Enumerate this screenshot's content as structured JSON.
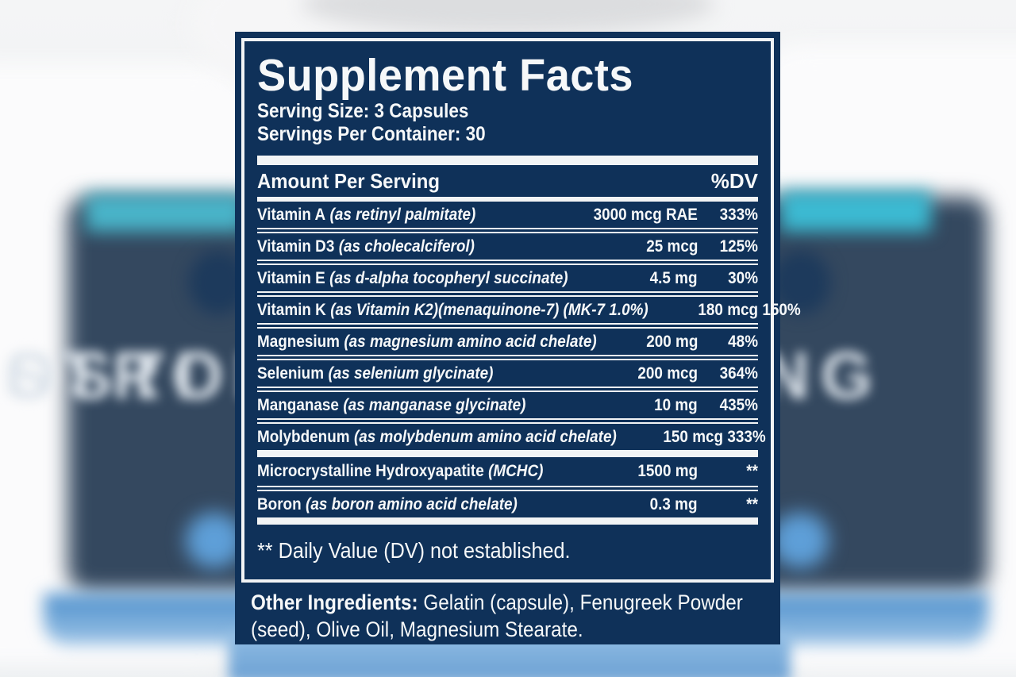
{
  "background": {
    "bottle_text_line1": "OSTI",
    "bottle_text_line2": "STRONG"
  },
  "label": {
    "title": "Supplement Facts",
    "serving_size": "Serving Size: 3 Capsules",
    "servings_per_container": "Servings Per Container: 30",
    "table": {
      "header": {
        "amount": "Amount Per Serving",
        "dv": "%DV"
      },
      "rows": [
        {
          "name": "Vitamin A",
          "detail": "(as retinyl palmitate)",
          "amount": "3000 mcg RAE",
          "dv": "333%"
        },
        {
          "name": "Vitamin D3",
          "detail": "(as cholecalciferol)",
          "amount": "25 mcg",
          "dv": "125%"
        },
        {
          "name": "Vitamin E",
          "detail": "(as d-alpha tocopheryl succinate)",
          "amount": "4.5 mg",
          "dv": "30%"
        },
        {
          "name": "Vitamin K",
          "detail": "(as Vitamin K2)(menaquinone-7) (MK-7 1.0%)",
          "amount": "180 mcg",
          "dv": "150%"
        },
        {
          "name": "Magnesium",
          "detail": "(as magnesium amino acid chelate)",
          "amount": "200 mg",
          "dv": "48%"
        },
        {
          "name": "Selenium",
          "detail": "(as selenium glycinate)",
          "amount": "200 mcg",
          "dv": "364%"
        },
        {
          "name": "Manganase",
          "detail": "(as manganase glycinate)",
          "amount": "10 mg",
          "dv": "435%"
        },
        {
          "name": "Molybdenum",
          "detail": "(as molybdenum amino acid chelate)",
          "amount": "150 mcg",
          "dv": "333%"
        }
      ],
      "rows_no_dv": [
        {
          "name": "Microcrystalline Hydroxyapatite",
          "detail": "(MCHC)",
          "amount": "1500 mg",
          "dv": "**"
        },
        {
          "name": "Boron",
          "detail": "(as boron amino acid chelate)",
          "amount": "0.3 mg",
          "dv": "**"
        }
      ]
    },
    "footnote": "** Daily Value (DV) not established.",
    "other_ingredients": {
      "label": "Other Ingredients:",
      "text": " Gelatin (capsule), Fenugreek Powder (seed), Olive Oil, Magnesium Stearate."
    }
  },
  "colors": {
    "panel_navy": "#0f3159",
    "line_white": "#f2f4f5",
    "bottle_navy": "#34485f",
    "teal_accent": "#3cbad2",
    "blue_band": "#6ba3d8"
  }
}
